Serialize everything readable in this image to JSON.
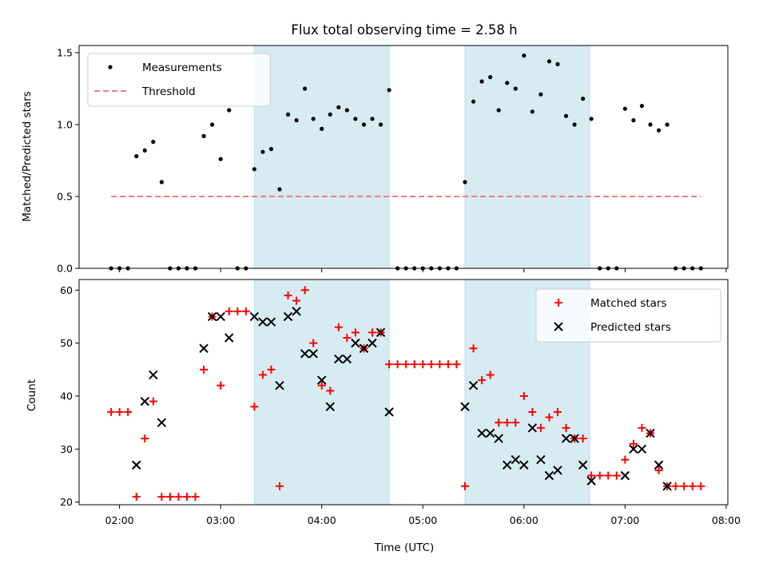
{
  "chart_data": [
    {
      "type": "scatter",
      "title": "Flux total observing time = 2.58 h",
      "xlabel": "",
      "ylabel": "Matched/Predicted stars",
      "ylim": [
        0,
        1.55
      ],
      "yticks": [
        0.0,
        0.5,
        1.0,
        1.5
      ],
      "ytick_labels": [
        "0.0",
        "0.5",
        "1.0",
        "1.5"
      ],
      "x_unit": "UTC time (HH:MM)",
      "xlim": [
        "01:36",
        "08:01"
      ],
      "legend_position": "upper-left",
      "shaded_intervals": [
        [
          "03:20",
          "04:40"
        ],
        [
          "05:25",
          "06:39"
        ]
      ],
      "shade_color": "#add8e6",
      "series": [
        {
          "name": "Measurements",
          "marker": "dot",
          "color": "#000000",
          "points": [
            [
              "01:55",
              0
            ],
            [
              "02:00",
              0
            ],
            [
              "02:05",
              0
            ],
            [
              "02:10",
              0.78
            ],
            [
              "02:15",
              0.82
            ],
            [
              "02:20",
              0.88
            ],
            [
              "02:25",
              0.6
            ],
            [
              "02:30",
              0
            ],
            [
              "02:35",
              0
            ],
            [
              "02:40",
              0
            ],
            [
              "02:45",
              0
            ],
            [
              "02:50",
              0.92
            ],
            [
              "02:55",
              1.0
            ],
            [
              "03:00",
              0.76
            ],
            [
              "03:05",
              1.1
            ],
            [
              "03:10",
              0
            ],
            [
              "03:15",
              0
            ],
            [
              "03:20",
              0.69
            ],
            [
              "03:25",
              0.81
            ],
            [
              "03:30",
              0.83
            ],
            [
              "03:35",
              0.55
            ],
            [
              "03:40",
              1.07
            ],
            [
              "03:45",
              1.03
            ],
            [
              "03:50",
              1.25
            ],
            [
              "03:55",
              1.04
            ],
            [
              "04:00",
              0.97
            ],
            [
              "04:05",
              1.07
            ],
            [
              "04:10",
              1.12
            ],
            [
              "04:15",
              1.1
            ],
            [
              "04:20",
              1.04
            ],
            [
              "04:25",
              1.0
            ],
            [
              "04:30",
              1.04
            ],
            [
              "04:35",
              1.0
            ],
            [
              "04:40",
              1.24
            ],
            [
              "04:45",
              0
            ],
            [
              "04:50",
              0
            ],
            [
              "04:55",
              0
            ],
            [
              "05:00",
              0
            ],
            [
              "05:05",
              0
            ],
            [
              "05:10",
              0
            ],
            [
              "05:15",
              0
            ],
            [
              "05:20",
              0
            ],
            [
              "05:25",
              0.6
            ],
            [
              "05:30",
              1.16
            ],
            [
              "05:35",
              1.3
            ],
            [
              "05:40",
              1.33
            ],
            [
              "05:45",
              1.1
            ],
            [
              "05:50",
              1.29
            ],
            [
              "05:55",
              1.25
            ],
            [
              "06:00",
              1.48
            ],
            [
              "06:05",
              1.09
            ],
            [
              "06:10",
              1.21
            ],
            [
              "06:15",
              1.44
            ],
            [
              "06:20",
              1.42
            ],
            [
              "06:25",
              1.06
            ],
            [
              "06:30",
              1.0
            ],
            [
              "06:35",
              1.18
            ],
            [
              "06:40",
              1.04
            ],
            [
              "06:45",
              0
            ],
            [
              "06:50",
              0
            ],
            [
              "06:55",
              0
            ],
            [
              "07:00",
              1.11
            ],
            [
              "07:05",
              1.03
            ],
            [
              "07:10",
              1.13
            ],
            [
              "07:15",
              1.0
            ],
            [
              "07:20",
              0.96
            ],
            [
              "07:25",
              1.0
            ],
            [
              "07:30",
              0
            ],
            [
              "07:35",
              0
            ],
            [
              "07:40",
              0
            ],
            [
              "07:45",
              0
            ]
          ]
        },
        {
          "name": "Threshold",
          "marker": "dashed-line",
          "color": "#f08080",
          "points": [
            [
              "01:55",
              0.5
            ],
            [
              "07:45",
              0.5
            ]
          ]
        }
      ]
    },
    {
      "type": "scatter",
      "title": "",
      "xlabel": "Time (UTC)",
      "ylabel": "Count",
      "ylim": [
        19.5,
        62
      ],
      "yticks": [
        20,
        30,
        40,
        50,
        60
      ],
      "ytick_labels": [
        "20",
        "30",
        "40",
        "50",
        "60"
      ],
      "xlim": [
        "01:36",
        "08:01"
      ],
      "xticks": [
        "02:00",
        "03:00",
        "04:00",
        "05:00",
        "06:00",
        "07:00",
        "08:00"
      ],
      "xtick_labels": [
        "02:00",
        "03:00",
        "04:00",
        "05:00",
        "06:00",
        "07:00",
        "08:00"
      ],
      "legend_position": "upper-right",
      "shaded_intervals": [
        [
          "03:20",
          "04:40"
        ],
        [
          "05:25",
          "06:39"
        ]
      ],
      "shade_color": "#add8e6",
      "series": [
        {
          "name": "Matched stars",
          "marker": "plus",
          "color": "#ff0000",
          "points": [
            [
              "01:55",
              37
            ],
            [
              "02:00",
              37
            ],
            [
              "02:05",
              37
            ],
            [
              "02:10",
              21
            ],
            [
              "02:15",
              32
            ],
            [
              "02:20",
              39
            ],
            [
              "02:25",
              21
            ],
            [
              "02:30",
              21
            ],
            [
              "02:35",
              21
            ],
            [
              "02:40",
              21
            ],
            [
              "02:45",
              21
            ],
            [
              "02:50",
              45
            ],
            [
              "02:55",
              55
            ],
            [
              "03:00",
              42
            ],
            [
              "03:05",
              56
            ],
            [
              "03:10",
              56
            ],
            [
              "03:15",
              56
            ],
            [
              "03:20",
              38
            ],
            [
              "03:25",
              44
            ],
            [
              "03:30",
              45
            ],
            [
              "03:35",
              23
            ],
            [
              "03:40",
              59
            ],
            [
              "03:45",
              58
            ],
            [
              "03:50",
              60
            ],
            [
              "03:55",
              50
            ],
            [
              "04:00",
              42
            ],
            [
              "04:05",
              41
            ],
            [
              "04:10",
              53
            ],
            [
              "04:15",
              51
            ],
            [
              "04:20",
              52
            ],
            [
              "04:25",
              49
            ],
            [
              "04:30",
              52
            ],
            [
              "04:35",
              52
            ],
            [
              "04:40",
              46
            ],
            [
              "04:45",
              46
            ],
            [
              "04:50",
              46
            ],
            [
              "04:55",
              46
            ],
            [
              "05:00",
              46
            ],
            [
              "05:05",
              46
            ],
            [
              "05:10",
              46
            ],
            [
              "05:15",
              46
            ],
            [
              "05:20",
              46
            ],
            [
              "05:25",
              23
            ],
            [
              "05:30",
              49
            ],
            [
              "05:35",
              43
            ],
            [
              "05:40",
              44
            ],
            [
              "05:45",
              35
            ],
            [
              "05:50",
              35
            ],
            [
              "05:55",
              35
            ],
            [
              "06:00",
              40
            ],
            [
              "06:05",
              37
            ],
            [
              "06:10",
              34
            ],
            [
              "06:15",
              36
            ],
            [
              "06:20",
              37
            ],
            [
              "06:25",
              34
            ],
            [
              "06:30",
              32
            ],
            [
              "06:35",
              32
            ],
            [
              "06:40",
              25
            ],
            [
              "06:45",
              25
            ],
            [
              "06:50",
              25
            ],
            [
              "06:55",
              25
            ],
            [
              "07:00",
              28
            ],
            [
              "07:05",
              31
            ],
            [
              "07:10",
              34
            ],
            [
              "07:15",
              33
            ],
            [
              "07:20",
              26
            ],
            [
              "07:25",
              23
            ],
            [
              "07:30",
              23
            ],
            [
              "07:35",
              23
            ],
            [
              "07:40",
              23
            ],
            [
              "07:45",
              23
            ]
          ]
        },
        {
          "name": "Predicted stars",
          "marker": "x",
          "color": "#000000",
          "points": [
            [
              "02:10",
              27
            ],
            [
              "02:15",
              39
            ],
            [
              "02:20",
              44
            ],
            [
              "02:25",
              35
            ],
            [
              "02:50",
              49
            ],
            [
              "02:55",
              55
            ],
            [
              "03:00",
              55
            ],
            [
              "03:05",
              51
            ],
            [
              "03:20",
              55
            ],
            [
              "03:25",
              54
            ],
            [
              "03:30",
              54
            ],
            [
              "03:35",
              42
            ],
            [
              "03:40",
              55
            ],
            [
              "03:45",
              56
            ],
            [
              "03:50",
              48
            ],
            [
              "03:55",
              48
            ],
            [
              "04:00",
              43
            ],
            [
              "04:05",
              38
            ],
            [
              "04:10",
              47
            ],
            [
              "04:15",
              47
            ],
            [
              "04:20",
              50
            ],
            [
              "04:25",
              49
            ],
            [
              "04:30",
              50
            ],
            [
              "04:35",
              52
            ],
            [
              "04:40",
              37
            ],
            [
              "05:25",
              38
            ],
            [
              "05:30",
              42
            ],
            [
              "05:35",
              33
            ],
            [
              "05:40",
              33
            ],
            [
              "05:45",
              32
            ],
            [
              "05:50",
              27
            ],
            [
              "05:55",
              28
            ],
            [
              "06:00",
              27
            ],
            [
              "06:05",
              34
            ],
            [
              "06:10",
              28
            ],
            [
              "06:15",
              25
            ],
            [
              "06:20",
              26
            ],
            [
              "06:25",
              32
            ],
            [
              "06:30",
              32
            ],
            [
              "06:35",
              27
            ],
            [
              "06:40",
              24
            ],
            [
              "07:00",
              25
            ],
            [
              "07:05",
              30
            ],
            [
              "07:10",
              30
            ],
            [
              "07:15",
              33
            ],
            [
              "07:20",
              27
            ],
            [
              "07:25",
              23
            ]
          ]
        }
      ]
    }
  ]
}
